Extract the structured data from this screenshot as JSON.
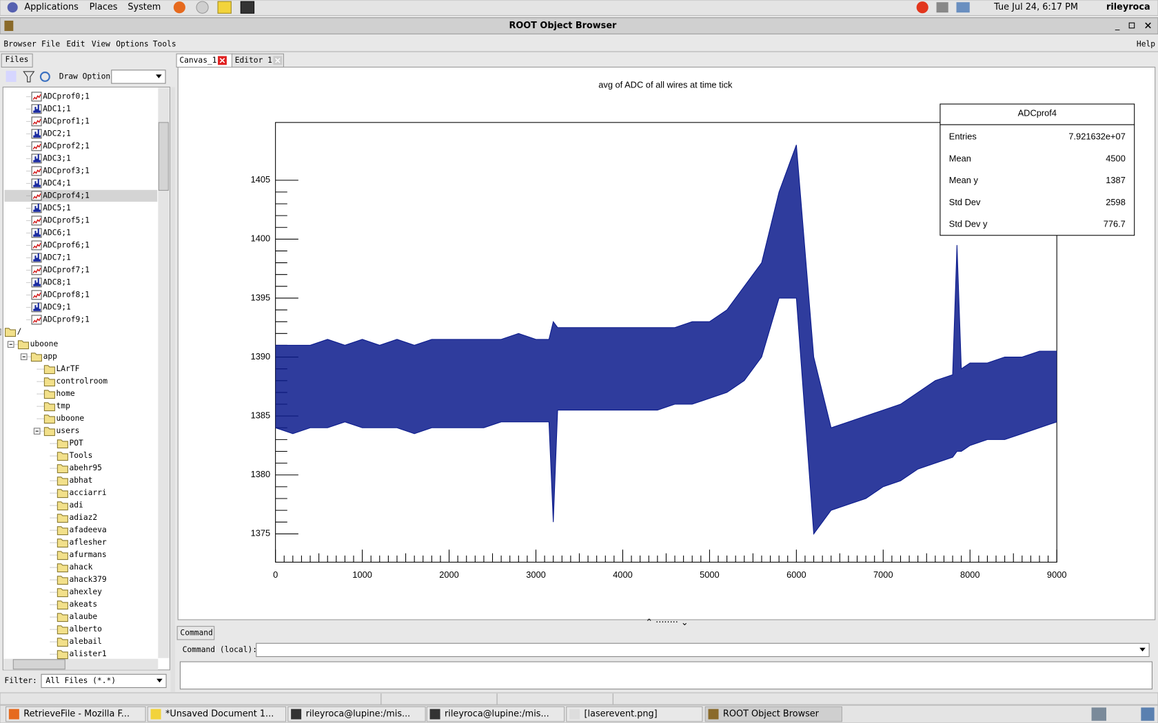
{
  "top_panel": {
    "menus": [
      "Applications",
      "Places",
      "System"
    ],
    "clock": "Tue Jul 24,  6:17 PM",
    "user": "rileyroca"
  },
  "window": {
    "title": "ROOT Object Browser",
    "menu": [
      "Browser",
      "File",
      "Edit",
      "View",
      "Options",
      "Tools"
    ],
    "help": "Help"
  },
  "sidebar": {
    "tab": "Files",
    "draw_option_label": "Draw Option:",
    "files": [
      "ADCprof0;1",
      "ADC1;1",
      "ADCprof1;1",
      "ADC2;1",
      "ADCprof2;1",
      "ADC3;1",
      "ADCprof3;1",
      "ADC4;1",
      "ADCprof4;1",
      "ADC5;1",
      "ADCprof5;1",
      "ADC6;1",
      "ADCprof6;1",
      "ADC7;1",
      "ADCprof7;1",
      "ADC8;1",
      "ADCprof8;1",
      "ADC9;1",
      "ADCprof9;1"
    ],
    "tree": {
      "label": "/",
      "children": [
        {
          "label": "uboone",
          "children": [
            {
              "label": "app",
              "children": [
                {
                  "label": "LArTF"
                },
                {
                  "label": "controlroom"
                },
                {
                  "label": "home"
                },
                {
                  "label": "tmp"
                },
                {
                  "label": "uboone"
                },
                {
                  "label": "users",
                  "children": [
                    {
                      "label": "POT"
                    },
                    {
                      "label": "Tools"
                    },
                    {
                      "label": "abehr95"
                    },
                    {
                      "label": "abhat"
                    },
                    {
                      "label": "acciarri"
                    },
                    {
                      "label": "adi"
                    },
                    {
                      "label": "adiaz2"
                    },
                    {
                      "label": "afadeeva"
                    },
                    {
                      "label": "aflesher"
                    },
                    {
                      "label": "afurmans"
                    },
                    {
                      "label": "ahack"
                    },
                    {
                      "label": "ahack379"
                    },
                    {
                      "label": "ahexley"
                    },
                    {
                      "label": "akeats"
                    },
                    {
                      "label": "alaube"
                    },
                    {
                      "label": "alberto"
                    },
                    {
                      "label": "alebail"
                    },
                    {
                      "label": "alister1"
                    }
                  ]
                }
              ]
            }
          ]
        }
      ]
    },
    "filter_label": "Filter:",
    "filter_value": "All Files (*.*)"
  },
  "tabs": [
    "Canvas_1",
    "Editor 1"
  ],
  "chart_data": {
    "type": "band",
    "title": "avg of ADC of all wires at time tick",
    "x": [
      0,
      200,
      400,
      600,
      800,
      1000,
      1200,
      1400,
      1600,
      1800,
      2000,
      2200,
      2400,
      2600,
      2800,
      3000,
      3150,
      3200,
      3250,
      3400,
      3600,
      3800,
      4000,
      4200,
      4400,
      4600,
      4800,
      5000,
      5200,
      5400,
      5600,
      5800,
      6000,
      6200,
      6400,
      6600,
      6800,
      7000,
      7200,
      7400,
      7600,
      7800,
      7850,
      7900,
      8000,
      8200,
      8400,
      8600,
      8800,
      9000
    ],
    "series": [
      {
        "color": "#0a1a8c",
        "values": [
          1391,
          1391,
          1391,
          1391.5,
          1391,
          1391.5,
          1391,
          1391.5,
          1391,
          1391.5,
          1391.5,
          1391.5,
          1391.5,
          1391.5,
          1392,
          1391.5,
          1391.5,
          1393,
          1392.5,
          1392.5,
          1392.5,
          1392.5,
          1392.5,
          1392.5,
          1392.5,
          1392.5,
          1393,
          1393,
          1394,
          1396,
          1398,
          1404,
          1408,
          1390,
          1384,
          1384.5,
          1385,
          1385.5,
          1386,
          1387,
          1388,
          1388.5,
          1399.5,
          1389,
          1389.5,
          1389.5,
          1390,
          1390,
          1390.5,
          1390.5
        ]
      },
      {
        "color": "#0a1a8c",
        "values": [
          1384,
          1383.5,
          1384,
          1384,
          1384.5,
          1384,
          1384,
          1384,
          1383.5,
          1384,
          1384,
          1384,
          1384,
          1384.5,
          1384.5,
          1384.5,
          1384.5,
          1376,
          1385.5,
          1385.5,
          1385.5,
          1385.5,
          1385.5,
          1385.5,
          1385.5,
          1386,
          1386,
          1386.5,
          1387,
          1388,
          1390,
          1395,
          1395,
          1375,
          1377,
          1377.5,
          1378,
          1379,
          1379.5,
          1380.5,
          1381,
          1381.5,
          1382,
          1382,
          1382.5,
          1383,
          1383,
          1383.5,
          1384,
          1384.5
        ]
      }
    ],
    "xlim": [
      0,
      9000
    ],
    "ylim": [
      1372.6,
      1409.9
    ],
    "xticks": [
      0,
      1000,
      2000,
      3000,
      4000,
      5000,
      6000,
      7000,
      8000,
      9000
    ],
    "yticks": [
      1375,
      1380,
      1385,
      1390,
      1395,
      1400,
      1405
    ],
    "stats": {
      "title": "ADCprof4",
      "rows": [
        [
          "Entries",
          "7.921632e+07"
        ],
        [
          "Mean",
          "4500"
        ],
        [
          "Mean y",
          "1387"
        ],
        [
          "Std Dev",
          "2598"
        ],
        [
          "Std Dev y",
          "776.7"
        ]
      ]
    }
  },
  "command": {
    "tab": "Command",
    "label": "Command (local):"
  },
  "taskbar": [
    "RetrieveFile - Mozilla F...",
    "*Unsaved Document 1...",
    "rileyroca@lupine:/mis...",
    "rileyroca@lupine:/mis...",
    "[laserevent.png]",
    "ROOT Object Browser"
  ]
}
